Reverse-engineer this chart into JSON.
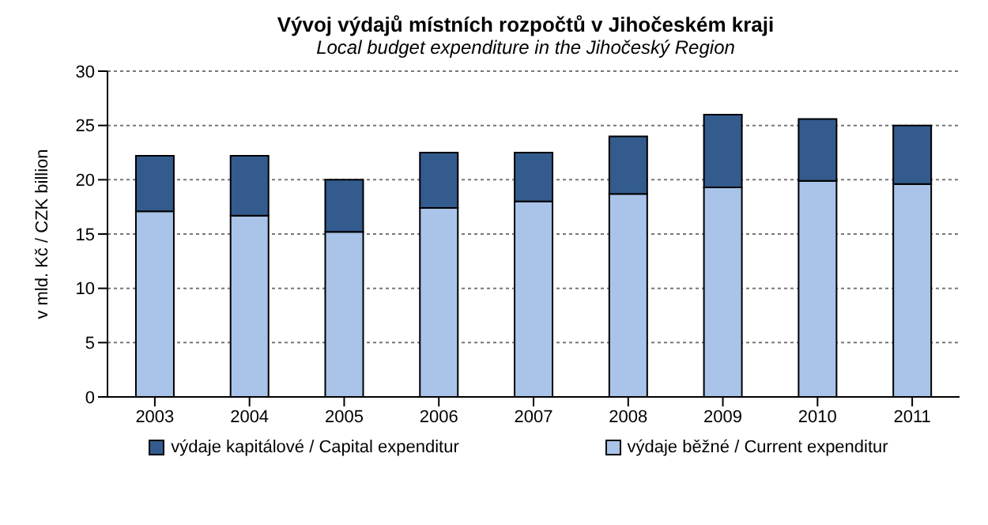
{
  "chart_data": {
    "type": "bar",
    "title": "Vývoj výdajů místních rozpočtů v Jihočeském kraji",
    "subtitle": "Local budget expenditure in the Jihočeský Region",
    "ylabel": "v mld. Kč / CZK billion",
    "categories": [
      "2003",
      "2004",
      "2005",
      "2006",
      "2007",
      "2008",
      "2009",
      "2010",
      "2011"
    ],
    "stacked": true,
    "ylim": [
      0,
      30
    ],
    "yticks": [
      0,
      5,
      10,
      15,
      20,
      25,
      30
    ],
    "grid": "y",
    "legend": "bottom",
    "series": [
      {
        "name": "výdaje běžné / Current expenditur",
        "color": "#a9c4e8",
        "values": [
          17.1,
          16.7,
          15.2,
          17.4,
          18.0,
          18.7,
          19.3,
          19.9,
          19.6
        ]
      },
      {
        "name": "výdaje kapitálové / Capital expenditur",
        "color": "#335b8e",
        "values": [
          5.1,
          5.5,
          4.8,
          5.1,
          4.5,
          5.3,
          6.7,
          5.7,
          5.4
        ]
      }
    ]
  }
}
